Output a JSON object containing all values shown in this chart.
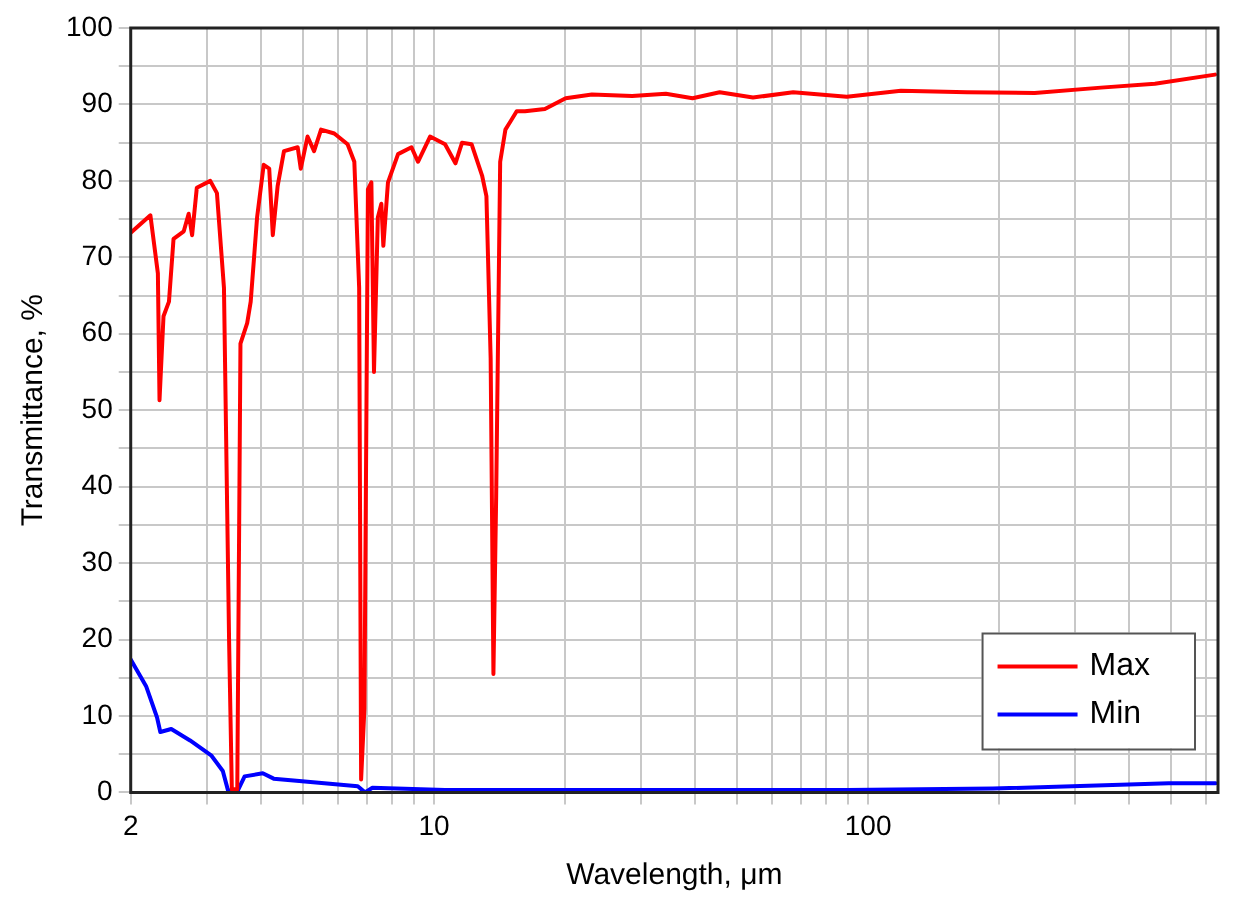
{
  "chart_data": {
    "type": "line",
    "xlabel": "Wavelength, μm",
    "ylabel": "Transmittance, %",
    "log": "x",
    "grid": true,
    "legend": "bottom right",
    "marker": "none",
    "line_style": "solid",
    "xlim": [
      2,
      640
    ],
    "ylim": [
      0,
      100
    ],
    "xticks": [
      2,
      {
        "value": 3,
        "label": null
      },
      {
        "value": 4,
        "label": null
      },
      {
        "value": 5,
        "label": null
      },
      {
        "value": 6,
        "label": null
      },
      {
        "value": 7,
        "label": null
      },
      {
        "value": 8,
        "label": null
      },
      {
        "value": 9,
        "label": null
      },
      10,
      {
        "value": 20,
        "label": null
      },
      {
        "value": 30,
        "label": null
      },
      {
        "value": 40,
        "label": null
      },
      {
        "value": 50,
        "label": null
      },
      {
        "value": 60,
        "label": null
      },
      {
        "value": 70,
        "label": null
      },
      {
        "value": 80,
        "label": null
      },
      {
        "value": 90,
        "label": null
      },
      100,
      {
        "value": 200,
        "label": null
      },
      {
        "value": 300,
        "label": null
      },
      {
        "value": 400,
        "label": null
      },
      {
        "value": 500,
        "label": null
      },
      {
        "value": 600,
        "label": null
      }
    ],
    "yticks": [
      0,
      {
        "value": 5,
        "label": null
      },
      10,
      {
        "value": 15,
        "label": null
      },
      20,
      {
        "value": 25,
        "label": null
      },
      30,
      {
        "value": 35,
        "label": null
      },
      40,
      {
        "value": 45,
        "label": null
      },
      50,
      {
        "value": 55,
        "label": null
      },
      60,
      {
        "value": 65,
        "label": null
      },
      70,
      {
        "value": 75,
        "label": null
      },
      80,
      {
        "value": 85,
        "label": null
      },
      90,
      {
        "value": 95,
        "label": null
      },
      100
    ],
    "series": [
      {
        "name": "Max",
        "color": "#ff0000",
        "x": [
          2.0,
          2.22,
          2.31,
          2.33,
          2.38,
          2.45,
          2.51,
          2.65,
          2.72,
          2.77,
          2.84,
          3.05,
          3.16,
          3.28,
          3.37,
          3.42,
          3.52,
          3.58,
          3.71,
          3.78,
          3.91,
          4.05,
          4.17,
          4.25,
          4.36,
          4.51,
          4.85,
          4.93,
          5.11,
          5.29,
          5.49,
          5.89,
          6.32,
          6.55,
          6.72,
          6.79,
          6.91,
          7.04,
          7.17,
          7.27,
          7.42,
          7.56,
          7.64,
          7.83,
          8.26,
          8.87,
          9.18,
          9.79,
          10.6,
          11.2,
          11.6,
          12.2,
          12.9,
          13.2,
          13.5,
          13.7,
          13.9,
          14.2,
          14.6,
          15.5,
          16.2,
          18.0,
          20.1,
          23.1,
          28.6,
          34.2,
          39.4,
          45.5,
          54.3,
          67.2,
          89.3,
          119,
          169,
          242,
          344,
          458,
          630
        ],
        "values": [
          73.2,
          75.5,
          67.9,
          51.3,
          62.3,
          64.2,
          72.4,
          73.4,
          75.7,
          72.9,
          79.1,
          80.0,
          78.4,
          66.0,
          20.0,
          0.4,
          0.4,
          58.7,
          61.4,
          64.2,
          75.2,
          82.1,
          81.6,
          72.9,
          79.3,
          83.9,
          84.4,
          81.6,
          85.8,
          83.9,
          86.7,
          86.2,
          84.8,
          82.5,
          66.0,
          1.7,
          11.0,
          78.9,
          79.8,
          55.0,
          75.2,
          77.0,
          71.5,
          79.8,
          83.5,
          84.4,
          82.5,
          85.8,
          84.8,
          82.3,
          85.0,
          84.8,
          80.7,
          78.0,
          56.8,
          15.5,
          38.6,
          82.5,
          86.7,
          89.1,
          89.1,
          89.4,
          90.8,
          91.3,
          91.1,
          91.4,
          90.8,
          91.6,
          90.9,
          91.6,
          91.0,
          91.8,
          91.6,
          91.5,
          92.2,
          92.7,
          93.9
        ]
      },
      {
        "name": "Min",
        "color": "#0000ff",
        "x": [
          2.0,
          2.17,
          2.3,
          2.34,
          2.48,
          2.74,
          3.07,
          3.26,
          3.35,
          3.52,
          3.66,
          4.03,
          4.27,
          4.89,
          6.67,
          6.93,
          7.21,
          10.6,
          19.0,
          89.5,
          194,
          493,
          632
        ],
        "values": [
          17.4,
          13.9,
          9.8,
          7.9,
          8.3,
          6.8,
          4.8,
          2.8,
          0.3,
          0.1,
          2.1,
          2.5,
          1.8,
          1.5,
          0.8,
          0.0,
          0.6,
          0.3,
          0.3,
          0.3,
          0.5,
          1.2,
          1.2
        ]
      }
    ]
  }
}
